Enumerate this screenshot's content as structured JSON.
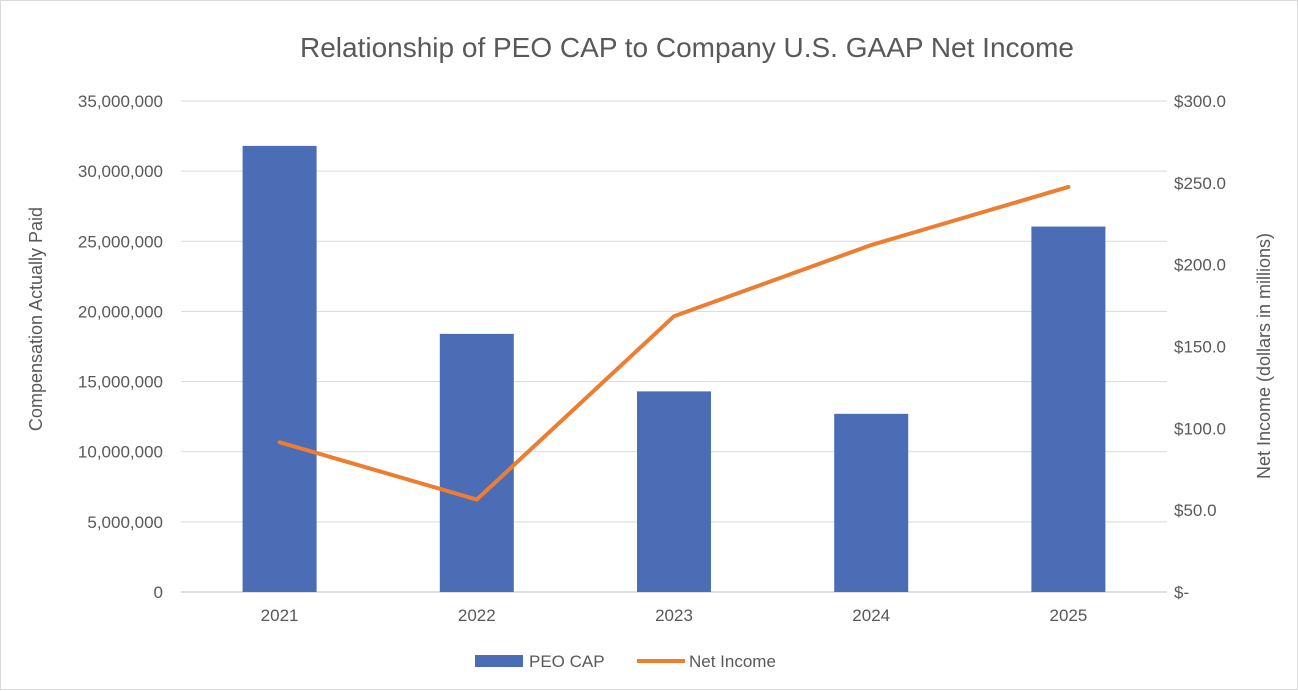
{
  "chart_data": {
    "type": "bar",
    "title": "Relationship of PEO CAP to Company U.S. GAAP Net Income",
    "categories": [
      "2021",
      "2022",
      "2023",
      "2024",
      "2025"
    ],
    "ylabel": "Compensation Actually Paid",
    "y2label": "Net Income (dollars in millions)",
    "ylim": [
      0,
      35000000
    ],
    "y2lim": [
      0,
      300
    ],
    "y_ticks": [
      "0",
      "5,000,000",
      "10,000,000",
      "15,000,000",
      "20,000,000",
      "25,000,000",
      "30,000,000",
      "35,000,000"
    ],
    "y2_ticks": [
      "$-",
      "$50.0",
      "$100.0",
      "$150.0",
      "$200.0",
      "$250.0",
      "$300.0"
    ],
    "grid": true,
    "legend_position": "bottom",
    "series": [
      {
        "name": "PEO CAP",
        "type": "bar",
        "axis": "left",
        "color": "#4a6db5",
        "values": [
          31800000,
          18400000,
          14300000,
          12700000,
          26050000
        ]
      },
      {
        "name": "Net Income",
        "type": "line",
        "axis": "right",
        "color": "#ed7d31",
        "values": [
          91.5,
          56.5,
          168.5,
          212.0,
          247.5
        ]
      }
    ]
  }
}
